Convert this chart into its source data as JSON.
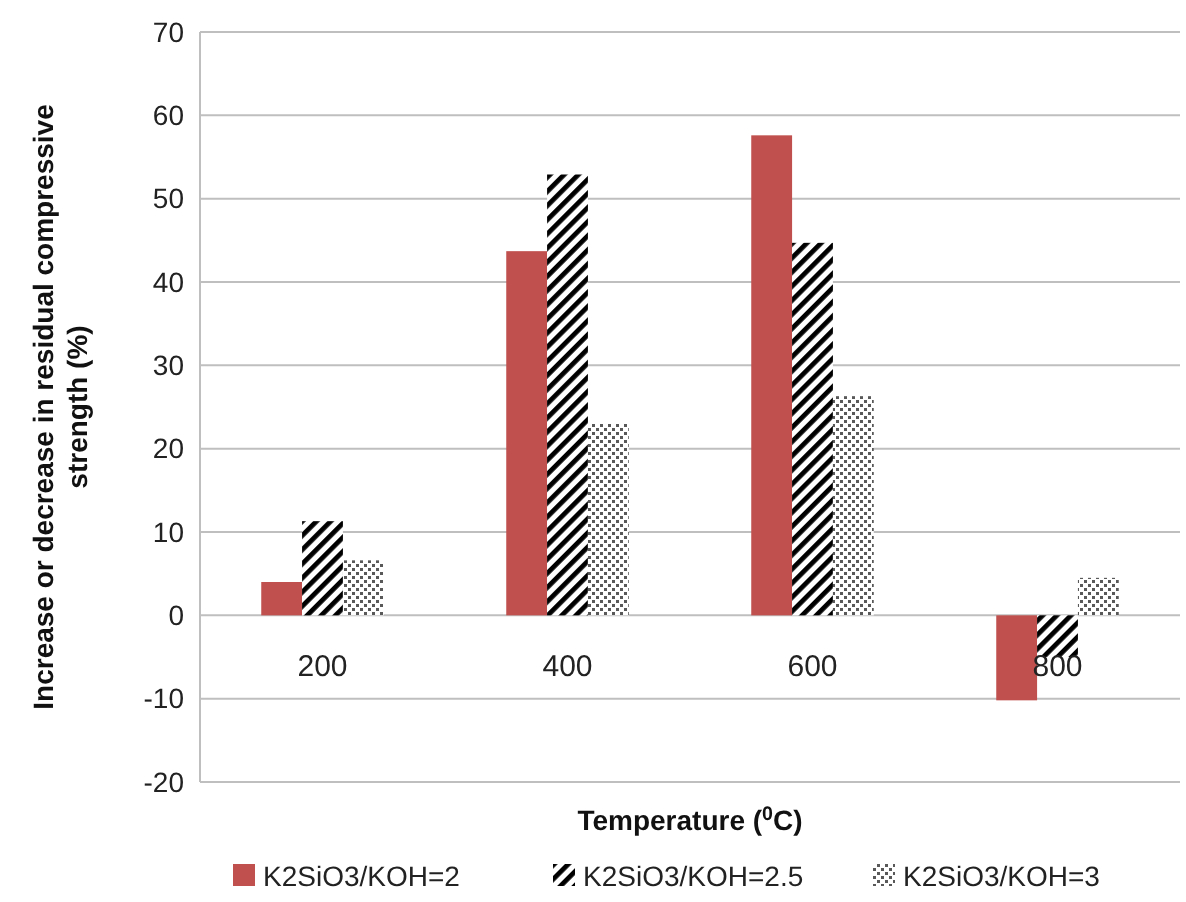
{
  "chart_data": {
    "type": "bar",
    "xlabel": "Temperature ($^{0}$C)",
    "ylabel": "Increase or decrease in residual compressive strength (%)",
    "categories": [
      "200",
      "400",
      "600",
      "800"
    ],
    "series": [
      {
        "name": "K2SiO3/KOH=2",
        "color": "#c0504d",
        "values": [
          4.0,
          43.7,
          57.6,
          -10.2
        ]
      },
      {
        "name": "K2SiO3/KOH=2.5",
        "color": "#000000",
        "values": [
          11.3,
          52.9,
          44.7,
          -5.0
        ]
      },
      {
        "name": "K2SiO3/KOH=3",
        "color": "#595959",
        "values": [
          6.6,
          23.0,
          26.3,
          4.5
        ]
      }
    ],
    "ylim": [
      -20,
      70
    ],
    "yticks": [
      -20,
      -10,
      0,
      10,
      20,
      30,
      40,
      50,
      60,
      70
    ],
    "grid": "y",
    "legend": "bottom"
  }
}
